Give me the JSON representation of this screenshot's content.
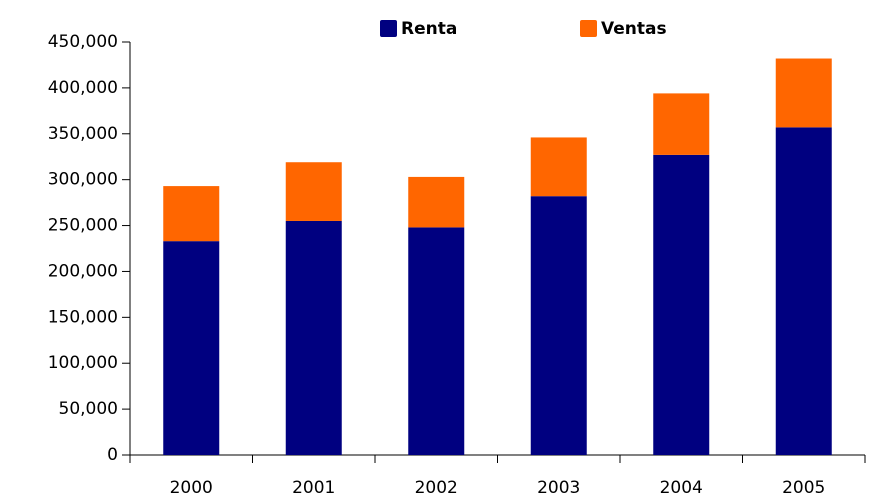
{
  "chart_data": {
    "type": "stacked_bar",
    "categories": [
      "2000",
      "2001",
      "2002",
      "2003",
      "2004",
      "2005"
    ],
    "series": [
      {
        "name": "Renta",
        "color": "#000080",
        "values": [
          233000,
          255000,
          248000,
          282000,
          327000,
          357000
        ]
      },
      {
        "name": "Ventas",
        "color": "#ff6600",
        "values": [
          60000,
          64000,
          55000,
          64000,
          67000,
          75000
        ]
      }
    ],
    "ylim": [
      0,
      450000
    ],
    "yticks": [
      0,
      {
        "value": 50000,
        "label": "50,000"
      },
      {
        "value": 100000,
        "label": "100,000"
      },
      {
        "value": 150000,
        "label": "150,000"
      },
      {
        "value": 200000,
        "label": "200,000"
      },
      {
        "value": 250000,
        "label": "250,000"
      },
      {
        "value": 300000,
        "label": "300,000"
      },
      {
        "value": 350000,
        "label": "350,000"
      },
      {
        "value": 400000,
        "label": "400,000"
      },
      {
        "value": 450000,
        "label": "450,000"
      }
    ],
    "legend": "top"
  }
}
